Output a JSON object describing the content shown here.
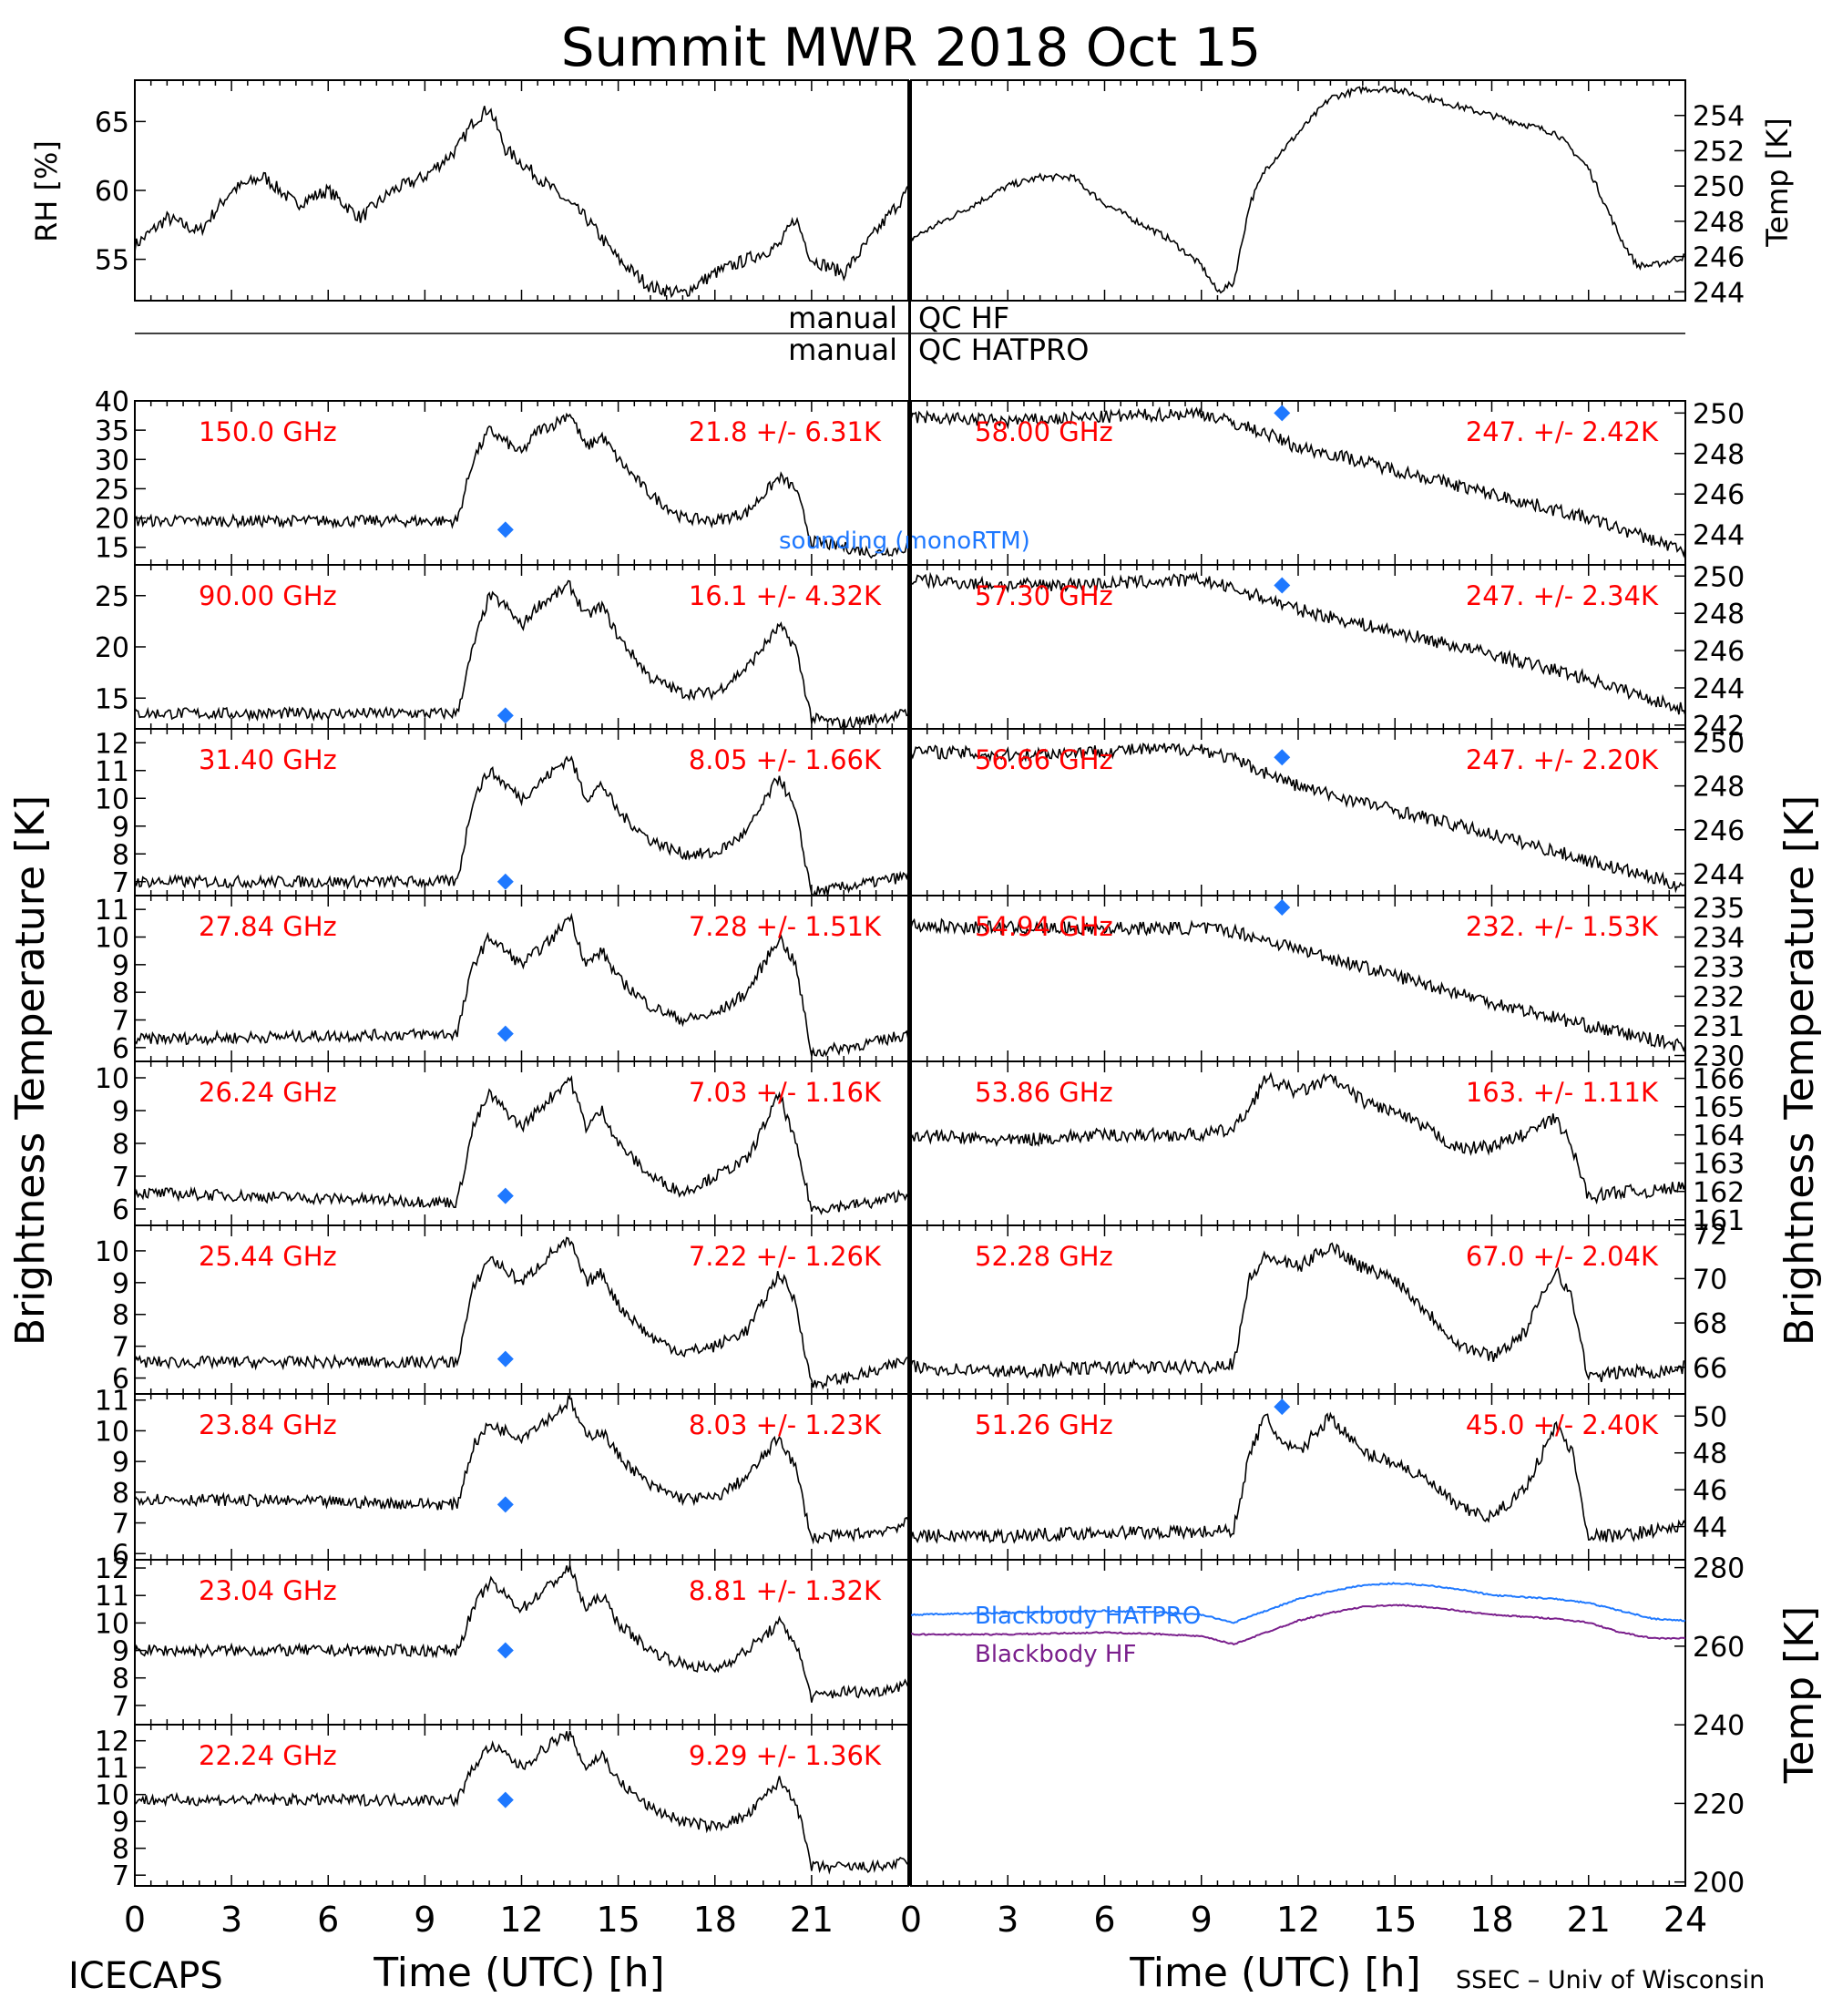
{
  "title": "Summit MWR 2018 Oct 15",
  "footer": {
    "left": "ICECAPS",
    "right": "SSEC – Univ of Wisconsin"
  },
  "qc": {
    "line1_left": "manual",
    "line1_right": "QC HF",
    "line2_left": "manual",
    "line2_right": "QC HATPRO"
  },
  "axis_labels": {
    "rh": "RH [%]",
    "temp_top": "Temp [K]",
    "bt_left": "Brightness Temperature [K]",
    "bt_right": "Brightness Temperature [K]",
    "temp_bottom": "Temp [K]",
    "time": "Time (UTC) [h]"
  },
  "colors": {
    "label": "#ff0000",
    "sounding": "#1e78ff",
    "hatpro": "#1e78ff",
    "hf": "#7a1f8c",
    "trace": "#000000"
  },
  "chart_data": [
    {
      "type": "line",
      "id": "rh",
      "ylabel": "RH [%]",
      "xlim": [
        0,
        24
      ],
      "ylim": [
        52,
        68
      ],
      "yticks": [
        55,
        60,
        65
      ],
      "x": [
        0,
        1,
        2,
        3,
        4,
        5,
        6,
        7,
        8,
        9,
        10,
        10.5,
        11,
        11.5,
        12,
        13,
        14,
        15,
        16,
        17,
        18,
        19,
        20,
        20.5,
        21,
        22,
        23,
        24
      ],
      "values": [
        56,
        58,
        57,
        60,
        61,
        59,
        60,
        58,
        60,
        61,
        63,
        65,
        66,
        63,
        62,
        60,
        58,
        55,
        53,
        52.5,
        54,
        55,
        56,
        58,
        55,
        54,
        57,
        60
      ]
    },
    {
      "type": "line",
      "id": "temp_top",
      "ylabel": "Temp [K]",
      "xlim": [
        0,
        24
      ],
      "ylim": [
        243.5,
        256
      ],
      "yticks": [
        244,
        246,
        248,
        250,
        252,
        254
      ],
      "x": [
        0,
        1,
        2,
        3,
        4,
        5,
        6,
        7,
        8,
        9,
        9.5,
        10,
        10.5,
        11,
        12,
        13,
        14,
        15,
        16,
        17,
        18,
        19,
        20,
        21,
        22,
        22.5,
        23,
        24
      ],
      "values": [
        247,
        248,
        249,
        250,
        250.5,
        250.5,
        249,
        248,
        247,
        245.5,
        244,
        244.5,
        249,
        251,
        253,
        255,
        255.5,
        255.5,
        255,
        254.5,
        254,
        253.5,
        253,
        251,
        247,
        245.5,
        245.5,
        246
      ]
    },
    {
      "type": "line",
      "id": "bt_150.0",
      "label": "150.0 GHz",
      "stat": "21.8 +/-  6.31K",
      "xlim": [
        0,
        24
      ],
      "ylim": [
        12,
        40
      ],
      "yticks": [
        15,
        20,
        25,
        30,
        35,
        40
      ],
      "x": [
        0,
        10,
        10.5,
        11,
        11.5,
        12,
        12.5,
        13,
        13.5,
        14,
        14.5,
        15,
        16,
        17,
        18,
        19,
        20,
        20.5,
        21,
        22,
        23,
        24
      ],
      "values": [
        19.5,
        19.5,
        30,
        35,
        33,
        31,
        35,
        36,
        38,
        32,
        34,
        30,
        24,
        20,
        19.5,
        21,
        27,
        25,
        16,
        15,
        14,
        15
      ],
      "sounding": {
        "x": 11.5,
        "y": 18
      },
      "annotation": "sounding (monoRTM)"
    },
    {
      "type": "line",
      "id": "bt_90.00",
      "label": "90.00 GHz",
      "stat": "16.1 +/-  4.32K",
      "xlim": [
        0,
        24
      ],
      "ylim": [
        12,
        28
      ],
      "yticks": [
        15,
        20,
        25
      ],
      "x": [
        0,
        10,
        10.5,
        11,
        11.5,
        12,
        12.5,
        13,
        13.5,
        14,
        14.5,
        15,
        16,
        17,
        18,
        19,
        20,
        20.5,
        21,
        22,
        23,
        24
      ],
      "values": [
        13.5,
        13.5,
        20,
        25,
        24,
        22,
        24,
        25,
        26,
        23,
        24,
        21,
        17,
        15.5,
        15.5,
        18,
        22,
        20,
        13,
        12.5,
        13,
        13.5
      ],
      "sounding": {
        "x": 11.5,
        "y": 13.3
      }
    },
    {
      "type": "line",
      "id": "bt_31.40",
      "label": "31.40 GHz",
      "stat": "8.05 +/-  1.66K",
      "xlim": [
        0,
        24
      ],
      "ylim": [
        6.5,
        12.5
      ],
      "yticks": [
        7,
        8,
        9,
        10,
        11,
        12
      ],
      "x": [
        0,
        10,
        10.5,
        11,
        11.5,
        12,
        12.5,
        13,
        13.5,
        14,
        14.5,
        15,
        16,
        17,
        18,
        19,
        20,
        20.5,
        21,
        22,
        23,
        24
      ],
      "values": [
        7,
        7,
        10,
        11,
        10.5,
        10,
        10.5,
        11,
        11.5,
        10,
        10.5,
        9.5,
        8.5,
        8,
        8,
        8.8,
        10.8,
        9.5,
        6.6,
        6.8,
        7,
        7.2
      ],
      "sounding": {
        "x": 11.5,
        "y": 7
      }
    },
    {
      "type": "line",
      "id": "bt_27.84",
      "label": "27.84 GHz",
      "stat": "7.28 +/-  1.51K",
      "xlim": [
        0,
        24
      ],
      "ylim": [
        5.5,
        11.5
      ],
      "yticks": [
        6,
        7,
        8,
        9,
        10,
        11
      ],
      "x": [
        0,
        10,
        10.5,
        11,
        11.5,
        12,
        12.5,
        13,
        13.5,
        14,
        14.5,
        15,
        16,
        17,
        18,
        19,
        20,
        20.5,
        21,
        22,
        23,
        24
      ],
      "values": [
        6.3,
        6.5,
        9,
        10,
        9.5,
        9,
        9.5,
        10,
        10.8,
        9,
        9.5,
        8.5,
        7.5,
        7,
        7.2,
        8,
        10,
        9,
        5.8,
        6,
        6.2,
        6.5
      ],
      "sounding": {
        "x": 11.5,
        "y": 6.5
      }
    },
    {
      "type": "line",
      "id": "bt_26.24",
      "label": "26.24 GHz",
      "stat": "7.03 +/-  1.16K",
      "xlim": [
        0,
        24
      ],
      "ylim": [
        5.5,
        10.5
      ],
      "yticks": [
        6,
        7,
        8,
        9,
        10
      ],
      "x": [
        0,
        10,
        10.5,
        11,
        11.5,
        12,
        12.5,
        13,
        13.5,
        14,
        14.5,
        15,
        16,
        17,
        18,
        19,
        20,
        20.5,
        21,
        22,
        23,
        24
      ],
      "values": [
        6.5,
        6.2,
        8.5,
        9.5,
        9,
        8.5,
        9,
        9.5,
        10,
        8.5,
        9,
        8,
        7,
        6.5,
        7,
        7.5,
        9.5,
        8,
        6,
        6.1,
        6.2,
        6.5
      ],
      "sounding": {
        "x": 11.5,
        "y": 6.4
      }
    },
    {
      "type": "line",
      "id": "bt_25.44",
      "label": "25.44 GHz",
      "stat": "7.22 +/-  1.26K",
      "xlim": [
        0,
        24
      ],
      "ylim": [
        5.5,
        10.8
      ],
      "yticks": [
        6,
        7,
        8,
        9,
        10
      ],
      "x": [
        0,
        10,
        10.5,
        11,
        11.5,
        12,
        12.5,
        13,
        13.5,
        14,
        14.5,
        15,
        16,
        17,
        18,
        19,
        20,
        20.5,
        21,
        22,
        23,
        24
      ],
      "values": [
        6.5,
        6.5,
        8.8,
        9.8,
        9.4,
        9,
        9.5,
        10,
        10.3,
        9,
        9.3,
        8.3,
        7.3,
        6.8,
        7,
        7.5,
        9.3,
        8.4,
        5.8,
        6,
        6.2,
        6.6
      ],
      "sounding": {
        "x": 11.5,
        "y": 6.6
      }
    },
    {
      "type": "line",
      "id": "bt_23.84",
      "label": "23.84 GHz",
      "stat": "8.03 +/-  1.23K",
      "xlim": [
        0,
        24
      ],
      "ylim": [
        5.8,
        11.2
      ],
      "yticks": [
        6,
        7,
        8,
        9,
        10,
        11
      ],
      "x": [
        0,
        10,
        10.5,
        11,
        11.5,
        12,
        12.5,
        13,
        13.5,
        14,
        14.5,
        15,
        16,
        17,
        18,
        19,
        20,
        20.5,
        21,
        22,
        23,
        24
      ],
      "values": [
        7.8,
        7.6,
        9.5,
        10.2,
        10,
        9.8,
        10.2,
        10.5,
        11,
        9.8,
        10,
        9.2,
        8.2,
        7.8,
        7.8,
        8.5,
        9.8,
        8.8,
        6.5,
        6.6,
        6.7,
        7
      ],
      "sounding": {
        "x": 11.5,
        "y": 7.6
      }
    },
    {
      "type": "line",
      "id": "bt_23.04",
      "label": "23.04 GHz",
      "stat": "8.81 +/-  1.32K",
      "xlim": [
        0,
        24
      ],
      "ylim": [
        6.3,
        12.3
      ],
      "yticks": [
        7,
        8,
        9,
        10,
        11,
        12
      ],
      "x": [
        0,
        10,
        10.5,
        11,
        11.5,
        12,
        12.5,
        13,
        13.5,
        14,
        14.5,
        15,
        16,
        17,
        18,
        19,
        20,
        20.5,
        21,
        22,
        23,
        24
      ],
      "values": [
        9,
        9,
        10.5,
        11.5,
        11,
        10.5,
        11,
        11.5,
        12,
        10.5,
        11,
        10,
        9,
        8.5,
        8.3,
        9,
        10,
        9.3,
        7.3,
        7.5,
        7.5,
        7.8
      ],
      "sounding": {
        "x": 11.5,
        "y": 9
      }
    },
    {
      "type": "line",
      "id": "bt_22.24",
      "label": "22.24 GHz",
      "stat": "9.29 +/-  1.36K",
      "xlim": [
        0,
        24
      ],
      "ylim": [
        6.6,
        12.6
      ],
      "yticks": [
        7,
        8,
        9,
        10,
        11,
        12
      ],
      "x": [
        0,
        10,
        10.5,
        11,
        11.5,
        12,
        12.5,
        13,
        13.5,
        14,
        14.5,
        15,
        16,
        17,
        18,
        19,
        20,
        20.5,
        21,
        22,
        23,
        24
      ],
      "values": [
        9.8,
        9.8,
        11,
        11.8,
        11.5,
        11,
        11.5,
        12,
        12.2,
        11,
        11.5,
        10.5,
        9.5,
        9,
        8.8,
        9.2,
        10.5,
        9.8,
        7.3,
        7.3,
        7.3,
        7.5
      ],
      "sounding": {
        "x": 11.5,
        "y": 9.8
      }
    },
    {
      "type": "line",
      "id": "bt_58.00",
      "label": "58.00 GHz",
      "stat": "247. +/- 2.42K",
      "xlim": [
        0,
        24
      ],
      "ylim": [
        242.5,
        250.6
      ],
      "yticks": [
        244,
        246,
        248,
        250
      ],
      "x": [
        0,
        3,
        6,
        9,
        10,
        11,
        12,
        13,
        15,
        18,
        21,
        24
      ],
      "values": [
        249.8,
        249.6,
        249.8,
        250,
        249.5,
        249,
        248.3,
        248,
        247.2,
        246,
        244.8,
        243.2
      ],
      "sounding": {
        "x": 11.5,
        "y": 250
      }
    },
    {
      "type": "line",
      "id": "bt_57.30",
      "label": "57.30 GHz",
      "stat": "247. +/- 2.34K",
      "xlim": [
        0,
        24
      ],
      "ylim": [
        241.8,
        250.6
      ],
      "yticks": [
        242,
        244,
        246,
        248,
        250
      ],
      "x": [
        0,
        3,
        6,
        9,
        10,
        11,
        12,
        13,
        15,
        18,
        21,
        24
      ],
      "values": [
        249.8,
        249.5,
        249.6,
        249.8,
        249.3,
        248.8,
        248.2,
        247.8,
        247,
        245.8,
        244.5,
        242.8
      ],
      "sounding": {
        "x": 11.5,
        "y": 249.5
      }
    },
    {
      "type": "line",
      "id": "bt_56.66",
      "label": "56.66 GHz",
      "stat": "247. +/- 2.20K",
      "xlim": [
        0,
        24
      ],
      "ylim": [
        243,
        250.6
      ],
      "yticks": [
        244,
        246,
        248,
        250
      ],
      "x": [
        0,
        3,
        6,
        9,
        10,
        11,
        12,
        13,
        15,
        18,
        21,
        24
      ],
      "values": [
        249.6,
        249.4,
        249.6,
        249.7,
        249.2,
        248.6,
        248,
        247.6,
        246.9,
        245.8,
        244.6,
        243.4
      ],
      "sounding": {
        "x": 11.5,
        "y": 249.3
      }
    },
    {
      "type": "line",
      "id": "bt_54.94",
      "label": "54.94 GHz",
      "stat": "232. +/- 1.53K",
      "xlim": [
        0,
        24
      ],
      "ylim": [
        229.8,
        235.4
      ],
      "yticks": [
        230,
        231,
        232,
        233,
        234,
        235
      ],
      "x": [
        0,
        3,
        6,
        9,
        10,
        11,
        12,
        13,
        15,
        18,
        21,
        24
      ],
      "values": [
        234.4,
        234.3,
        234.3,
        234.3,
        234.2,
        233.9,
        233.6,
        233.3,
        232.7,
        231.8,
        231,
        230.3
      ],
      "sounding": {
        "x": 11.5,
        "y": 235
      }
    },
    {
      "type": "line",
      "id": "bt_53.86",
      "label": "53.86 GHz",
      "stat": "163. +/- 1.11K",
      "xlim": [
        0,
        24
      ],
      "ylim": [
        160.8,
        166.6
      ],
      "yticks": [
        161,
        162,
        163,
        164,
        165,
        166
      ],
      "x": [
        0,
        3,
        6,
        9,
        10,
        10.5,
        11,
        12,
        13,
        14,
        15,
        16,
        17,
        18,
        19,
        20,
        20.5,
        21,
        22,
        23,
        24
      ],
      "values": [
        164,
        163.8,
        164,
        164,
        164.2,
        165,
        166,
        165.5,
        166,
        165.2,
        164.8,
        164.2,
        163.5,
        163.6,
        164,
        164.6,
        163.5,
        161.8,
        162,
        162,
        162.2
      ]
    },
    {
      "type": "line",
      "id": "bt_52.28",
      "label": "52.28 GHz",
      "stat": "67.0 +/- 2.04K",
      "xlim": [
        0,
        24
      ],
      "ylim": [
        64.8,
        72.4
      ],
      "yticks": [
        66,
        68,
        70,
        72
      ],
      "x": [
        0,
        3,
        6,
        9,
        10,
        10.5,
        11,
        12,
        13,
        14,
        15,
        16,
        17,
        18,
        19,
        20,
        20.5,
        21,
        22,
        23,
        24
      ],
      "values": [
        66,
        65.8,
        66,
        66,
        66.2,
        70,
        71,
        70.5,
        71.5,
        70.5,
        70,
        68.5,
        67,
        66.5,
        67.5,
        70.5,
        69,
        65.5,
        65.8,
        65.8,
        66
      ]
    },
    {
      "type": "line",
      "id": "bt_51.26",
      "label": "51.26 GHz",
      "stat": "45.0 +/- 2.40K",
      "xlim": [
        0,
        24
      ],
      "ylim": [
        42.2,
        51.2
      ],
      "yticks": [
        44,
        46,
        48,
        50
      ],
      "x": [
        0,
        3,
        6,
        9,
        10,
        10.5,
        11,
        11.5,
        12,
        13,
        14,
        15,
        16,
        17,
        18,
        19,
        20,
        20.5,
        21,
        22,
        23,
        24
      ],
      "values": [
        43.5,
        43.5,
        43.7,
        43.7,
        43.8,
        48,
        50,
        48.5,
        48,
        50,
        48,
        47.5,
        46.5,
        45,
        44.5,
        46,
        49.5,
        48,
        43.5,
        43.5,
        43.8,
        44
      ],
      "sounding": {
        "x": 11.5,
        "y": 50.5
      }
    },
    {
      "type": "line",
      "id": "blackbody",
      "ylabel": "Temp [K]",
      "xlim": [
        0,
        24
      ],
      "ylim": [
        199,
        282
      ],
      "yticks": [
        200,
        220,
        240,
        260,
        280
      ],
      "x": [
        0,
        3,
        6,
        8,
        9,
        10,
        11,
        12,
        13,
        14,
        15,
        16,
        17,
        18,
        19,
        20,
        21,
        22,
        23,
        24
      ],
      "series": [
        {
          "name": "Blackbody HATPRO",
          "values": [
            268,
            268.5,
            269,
            268.5,
            268,
            266,
            269,
            272,
            274,
            275.5,
            276,
            275.5,
            274.5,
            273,
            272.5,
            272,
            271,
            269,
            267,
            266.5
          ]
        },
        {
          "name": "Blackbody HF",
          "values": [
            263,
            263,
            263.5,
            263,
            262.5,
            260.5,
            263.5,
            266.5,
            268.5,
            270,
            270.5,
            270,
            269,
            268,
            267.5,
            267,
            266,
            263.5,
            262,
            262
          ]
        }
      ]
    }
  ],
  "xaxis": {
    "ticks": [
      "0",
      "3",
      "6",
      "9",
      "12",
      "15",
      "18",
      "21",
      "24"
    ],
    "left_ticks": [
      "0",
      "3",
      "6",
      "9",
      "12",
      "15",
      "18",
      "21"
    ]
  }
}
